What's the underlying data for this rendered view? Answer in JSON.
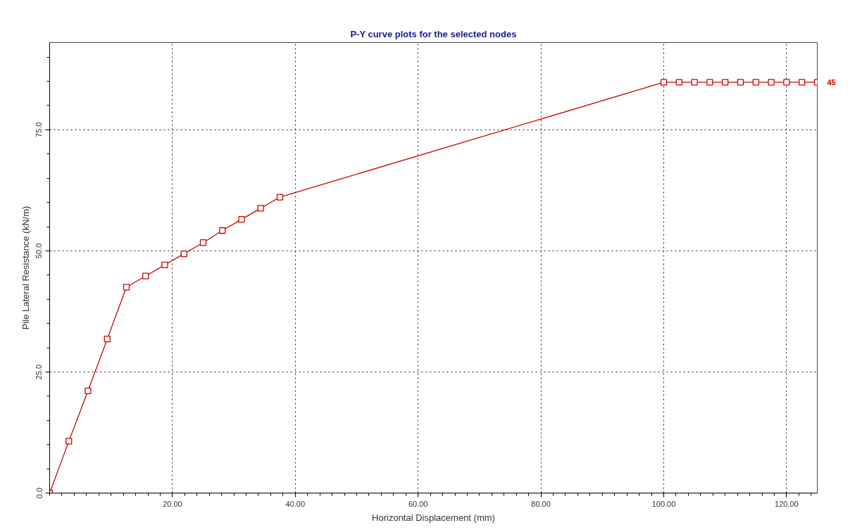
{
  "chart_data": {
    "type": "line",
    "title": "P-Y curve plots for the selected nodes",
    "xlabel": "Horizontal Displacement (mm)",
    "ylabel": "Pile Lateral Resistance (kN/m)",
    "xlim": [
      0,
      125
    ],
    "ylim": [
      0,
      93
    ],
    "xticks": [
      {
        "value": 20,
        "label": "20.00"
      },
      {
        "value": 40,
        "label": "40.00"
      },
      {
        "value": 60,
        "label": "60.00"
      },
      {
        "value": 80,
        "label": "80.00"
      },
      {
        "value": 100,
        "label": "100.00"
      },
      {
        "value": 120,
        "label": "120.00"
      }
    ],
    "yticks": [
      {
        "value": 0,
        "label": "0.0"
      },
      {
        "value": 25,
        "label": "25.0"
      },
      {
        "value": 50,
        "label": "50.0"
      },
      {
        "value": 75,
        "label": "75.0"
      }
    ],
    "grid": true,
    "marker": "square",
    "line_style": "solid",
    "series": [
      {
        "name": "45",
        "color": "#cc0000",
        "x": [
          0,
          3.125,
          6.25,
          9.375,
          12.5,
          15.625,
          18.75,
          21.875,
          25,
          28.125,
          31.25,
          34.375,
          37.5,
          100,
          102.5,
          105,
          107.5,
          110,
          112.5,
          115,
          117.5,
          120,
          122.5,
          125
        ],
        "values": [
          0,
          10.7,
          21.1,
          31.8,
          42.5,
          44.8,
          47.1,
          49.4,
          51.7,
          54.2,
          56.5,
          58.8,
          61.1,
          84.8,
          84.8,
          84.8,
          84.8,
          84.8,
          84.8,
          84.8,
          84.8,
          84.8,
          84.8,
          84.8
        ]
      }
    ]
  }
}
